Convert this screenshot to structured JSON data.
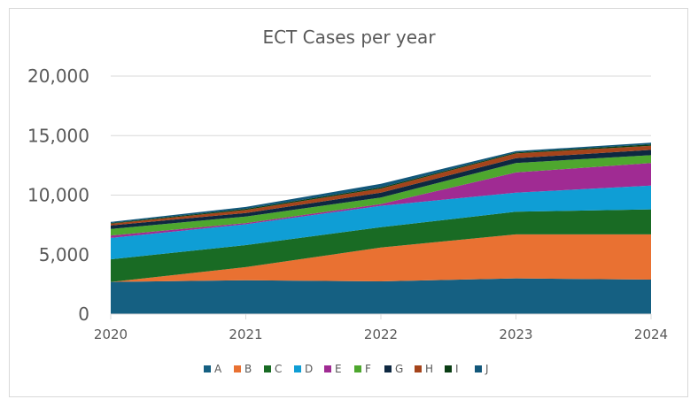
{
  "chart_data": {
    "type": "area",
    "stacked": true,
    "title": "ECT Cases per year",
    "xlabel": "",
    "ylabel": "",
    "categories": [
      "2020",
      "2021",
      "2022",
      "2023",
      "2024"
    ],
    "ylim": [
      0,
      20000
    ],
    "yticks": [
      "0",
      "5,000",
      "10,000",
      "15,000",
      "20,000"
    ],
    "grid": true,
    "legend_position": "bottom",
    "series": [
      {
        "name": "A",
        "color": "#156082",
        "values": [
          2700,
          2850,
          2750,
          3000,
          2900
        ]
      },
      {
        "name": "B",
        "color": "#e97132",
        "values": [
          0,
          1100,
          2850,
          3700,
          3800
        ]
      },
      {
        "name": "C",
        "color": "#196b24",
        "values": [
          1900,
          1850,
          1700,
          1900,
          2100
        ]
      },
      {
        "name": "D",
        "color": "#0f9ed5",
        "values": [
          1800,
          1750,
          1800,
          1600,
          2000
        ]
      },
      {
        "name": "E",
        "color": "#a02b93",
        "values": [
          200,
          100,
          150,
          1700,
          1900
        ]
      },
      {
        "name": "F",
        "color": "#4ea72e",
        "values": [
          550,
          550,
          550,
          800,
          650
        ]
      },
      {
        "name": "G",
        "color": "#0e2841",
        "values": [
          300,
          300,
          400,
          400,
          450
        ]
      },
      {
        "name": "H",
        "color": "#a5441b",
        "values": [
          150,
          250,
          350,
          400,
          350
        ]
      },
      {
        "name": "I",
        "color": "#0a3d14",
        "values": [
          50,
          100,
          100,
          80,
          120
        ]
      },
      {
        "name": "J",
        "color": "#12577a",
        "values": [
          100,
          150,
          300,
          120,
          130
        ]
      }
    ]
  }
}
